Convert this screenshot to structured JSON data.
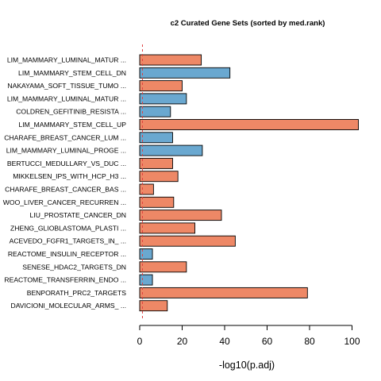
{
  "chart_data": {
    "type": "bar",
    "orientation": "horizontal",
    "title": "c2 Curated Gene Sets (sorted by med.rank)",
    "xlabel": "-log10(p.adj)",
    "ylabel": "",
    "xlim": [
      0,
      105
    ],
    "xticks": [
      "0",
      "20",
      "40",
      "60",
      "80",
      "100"
    ],
    "xtick_values": [
      0,
      20,
      40,
      60,
      80,
      100
    ],
    "reference_line": 1.3,
    "grid": false,
    "colors": {
      "up": "#ee8866",
      "down": "#6aa8d0",
      "reference": "#e04040",
      "border": "#000000"
    },
    "categories": [
      "LIM_MAMMARY_LUMINAL_MATUR ...",
      "LIM_MAMMARY_STEM_CELL_DN",
      "NAKAYAMA_SOFT_TISSUE_TUMO ...",
      "LIM_MAMMARY_LUMINAL_MATUR ...",
      "COLDREN_GEFITINIB_RESISTA ...",
      "LIM_MAMMARY_STEM_CELL_UP",
      "CHARAFE_BREAST_CANCER_LUM ...",
      "LIM_MAMMARY_LUMINAL_PROGE ...",
      "BERTUCCI_MEDULLARY_VS_DUC ...",
      "MIKKELSEN_IPS_WITH_HCP_H3 ...",
      "CHARAFE_BREAST_CANCER_BAS ...",
      "WOO_LIVER_CANCER_RECURREN ...",
      "LIU_PROSTATE_CANCER_DN",
      "ZHENG_GLIOBLASTOMA_PLASTI ...",
      "ACEVEDO_FGFR1_TARGETS_IN_ ...",
      "REACTOME_INSULIN_RECEPTOR ...",
      "SENESE_HDAC2_TARGETS_DN",
      "REACTOME_TRANSFERRIN_ENDO ...",
      "BENPORATH_PRC2_TARGETS",
      "DAVICIONI_MOLECULAR_ARMS_ ..."
    ],
    "values": [
      29,
      42.5,
      20,
      22,
      14.5,
      103,
      15.5,
      29.5,
      15.5,
      18,
      6.5,
      16,
      38.5,
      26,
      45,
      6,
      22,
      6,
      79,
      13
    ],
    "direction": [
      "up",
      "down",
      "up",
      "down",
      "down",
      "up",
      "down",
      "down",
      "up",
      "up",
      "up",
      "up",
      "up",
      "up",
      "up",
      "down",
      "up",
      "down",
      "up",
      "up"
    ]
  }
}
